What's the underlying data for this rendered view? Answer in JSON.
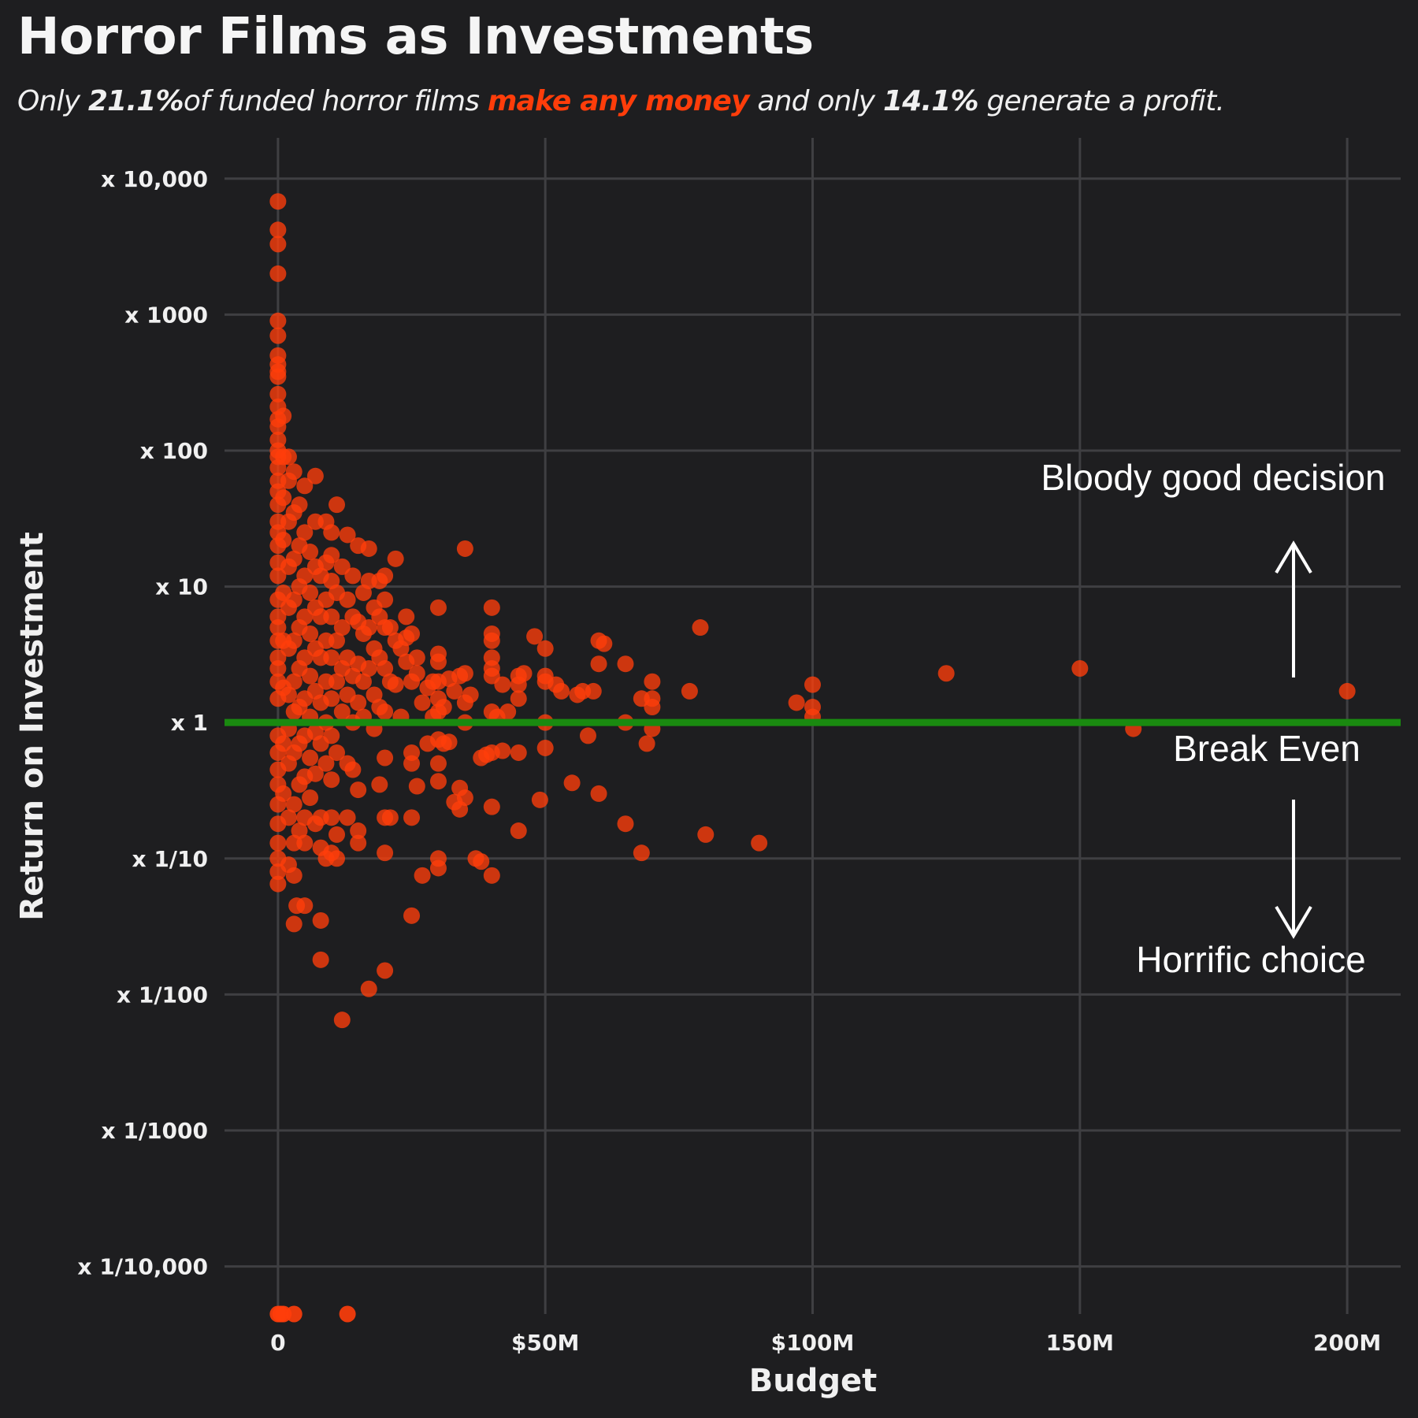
{
  "header": {
    "title": "Horror Films as Investments",
    "subtitle_parts": [
      "Only ",
      "21.1%",
      "of funded horror films ",
      "make any money",
      " and only ",
      "14.1%",
      " generate a profit."
    ]
  },
  "colors": {
    "background": "#1e1e20",
    "points": "#ff3d0a",
    "break_even_line": "#1a8a10",
    "grid": "#3f3f42",
    "text": "#f0f0f0"
  },
  "annotations": {
    "upper": "Bloody good decision",
    "middle": "Break Even",
    "lower": "Horrific choice"
  },
  "chart_data": {
    "type": "scatter",
    "xlabel": "Budget",
    "ylabel": "Return on Investment",
    "xlim": [
      -10000000,
      210000000
    ],
    "ylim_log10": [
      -4.35,
      4.3
    ],
    "y_scale": "log10",
    "grid": true,
    "x_ticks": [
      {
        "value": 0,
        "label": "0"
      },
      {
        "value": 50000000,
        "label": "$50M"
      },
      {
        "value": 100000000,
        "label": "$100M"
      },
      {
        "value": 150000000,
        "label": "150M"
      },
      {
        "value": 200000000,
        "label": "200M"
      }
    ],
    "y_ticks": [
      {
        "value": 10000,
        "label": "x 10,000"
      },
      {
        "value": 1000,
        "label": "x 1000"
      },
      {
        "value": 100,
        "label": "x 100"
      },
      {
        "value": 10,
        "label": "x 10"
      },
      {
        "value": 1,
        "label": "x 1"
      },
      {
        "value": 0.1,
        "label": "x 1/10"
      },
      {
        "value": 0.01,
        "label": "x 1/100"
      },
      {
        "value": 0.001,
        "label": "x 1/1000"
      },
      {
        "value": 0.0001,
        "label": "x 1/10,000"
      }
    ],
    "break_even": 1,
    "points": [
      [
        0,
        6800
      ],
      [
        0,
        4200
      ],
      [
        0,
        3300
      ],
      [
        0,
        2000
      ],
      [
        0,
        900
      ],
      [
        0,
        700
      ],
      [
        0,
        500
      ],
      [
        0,
        430
      ],
      [
        0,
        380
      ],
      [
        0,
        350
      ],
      [
        0,
        260
      ],
      [
        0,
        210
      ],
      [
        0,
        170
      ],
      [
        0,
        150
      ],
      [
        0,
        120
      ],
      [
        0,
        100
      ],
      [
        0,
        90
      ],
      [
        0,
        75
      ],
      [
        0,
        60
      ],
      [
        0,
        50
      ],
      [
        0,
        40
      ],
      [
        0,
        30
      ],
      [
        0,
        25
      ],
      [
        0,
        20
      ],
      [
        0,
        15
      ],
      [
        0,
        12
      ],
      [
        0,
        8
      ],
      [
        0,
        6
      ],
      [
        0,
        5
      ],
      [
        0,
        4
      ],
      [
        0,
        3
      ],
      [
        0,
        2.5
      ],
      [
        0,
        2
      ],
      [
        0,
        1.5
      ],
      [
        0,
        0.8
      ],
      [
        0,
        0.6
      ],
      [
        0,
        0.45
      ],
      [
        0,
        0.35
      ],
      [
        0,
        0.25
      ],
      [
        0,
        0.18
      ],
      [
        0,
        0.13
      ],
      [
        0,
        0.1
      ],
      [
        0,
        0.08
      ],
      [
        0,
        0.065
      ],
      [
        1000000,
        180
      ],
      [
        1000000,
        90
      ],
      [
        1000000,
        45
      ],
      [
        1000000,
        22
      ],
      [
        1000000,
        9
      ],
      [
        1000000,
        4
      ],
      [
        1000000,
        1.8
      ],
      [
        1000000,
        0.7
      ],
      [
        1000000,
        0.3
      ],
      [
        2000000,
        90
      ],
      [
        2000000,
        60
      ],
      [
        2000000,
        30
      ],
      [
        2000000,
        14
      ],
      [
        2000000,
        7
      ],
      [
        2000000,
        3.5
      ],
      [
        2000000,
        1.6
      ],
      [
        2000000,
        0.9
      ],
      [
        2000000,
        0.5
      ],
      [
        2000000,
        0.2
      ],
      [
        2000000,
        0.09
      ],
      [
        3000000,
        70
      ],
      [
        3000000,
        35
      ],
      [
        3000000,
        16
      ],
      [
        3000000,
        8
      ],
      [
        3000000,
        4
      ],
      [
        3000000,
        2
      ],
      [
        3000000,
        1.2
      ],
      [
        3000000,
        0.6
      ],
      [
        3000000,
        0.25
      ],
      [
        3000000,
        0.13
      ],
      [
        3000000,
        0.075
      ],
      [
        4000000,
        40
      ],
      [
        4000000,
        20
      ],
      [
        4000000,
        10
      ],
      [
        4000000,
        5
      ],
      [
        4000000,
        2.5
      ],
      [
        4000000,
        1.3
      ],
      [
        4000000,
        0.7
      ],
      [
        4000000,
        0.35
      ],
      [
        4000000,
        0.16
      ],
      [
        5000000,
        55
      ],
      [
        5000000,
        25
      ],
      [
        5000000,
        12
      ],
      [
        5000000,
        6
      ],
      [
        5000000,
        3
      ],
      [
        5000000,
        1.5
      ],
      [
        5000000,
        0.8
      ],
      [
        5000000,
        0.4
      ],
      [
        5000000,
        0.2
      ],
      [
        5000000,
        0.13
      ],
      [
        3500000,
        0.045
      ],
      [
        5000000,
        0.045
      ],
      [
        3000000,
        0.033
      ],
      [
        6000000,
        18
      ],
      [
        6000000,
        9
      ],
      [
        6000000,
        4.5
      ],
      [
        6000000,
        2.2
      ],
      [
        6000000,
        1.1
      ],
      [
        6000000,
        0.55
      ],
      [
        6000000,
        0.28
      ],
      [
        7000000,
        30
      ],
      [
        7000000,
        14
      ],
      [
        7000000,
        7
      ],
      [
        7000000,
        3.5
      ],
      [
        7000000,
        1.7
      ],
      [
        7000000,
        0.85
      ],
      [
        7000000,
        0.42
      ],
      [
        7000000,
        0.18
      ],
      [
        7000000,
        65
      ],
      [
        8000000,
        12
      ],
      [
        8000000,
        6
      ],
      [
        8000000,
        3
      ],
      [
        8000000,
        1.4
      ],
      [
        8000000,
        0.7
      ],
      [
        8000000,
        0.2
      ],
      [
        8000000,
        0.12
      ],
      [
        8000000,
        0.035
      ],
      [
        8000000,
        0.018
      ],
      [
        9000000,
        30
      ],
      [
        9000000,
        15
      ],
      [
        9000000,
        8
      ],
      [
        9000000,
        4
      ],
      [
        9000000,
        2
      ],
      [
        9000000,
        1
      ],
      [
        9000000,
        0.5
      ],
      [
        9000000,
        0.1
      ],
      [
        10000000,
        25
      ],
      [
        10000000,
        17
      ],
      [
        10000000,
        11
      ],
      [
        10000000,
        6
      ],
      [
        10000000,
        3
      ],
      [
        10000000,
        1.5
      ],
      [
        10000000,
        0.8
      ],
      [
        10000000,
        0.38
      ],
      [
        10000000,
        0.2
      ],
      [
        10000000,
        0.11
      ],
      [
        11000000,
        40
      ],
      [
        11000000,
        9
      ],
      [
        11000000,
        4
      ],
      [
        11000000,
        2
      ],
      [
        11000000,
        0.6
      ],
      [
        11000000,
        0.15
      ],
      [
        11000000,
        0.1
      ],
      [
        12000000,
        14
      ],
      [
        12000000,
        5
      ],
      [
        12000000,
        2.5
      ],
      [
        12000000,
        1.2
      ],
      [
        12000000,
        0.0065
      ],
      [
        13000000,
        24
      ],
      [
        13000000,
        8
      ],
      [
        13000000,
        3
      ],
      [
        13000000,
        1.6
      ],
      [
        13000000,
        0.5
      ],
      [
        13000000,
        0.2
      ],
      [
        14000000,
        12
      ],
      [
        14000000,
        6
      ],
      [
        14000000,
        2.2
      ],
      [
        14000000,
        1
      ],
      [
        14000000,
        0.45
      ],
      [
        15000000,
        20
      ],
      [
        15000000,
        5.5
      ],
      [
        15000000,
        2.7
      ],
      [
        15000000,
        1.4
      ],
      [
        15000000,
        0.32
      ],
      [
        15000000,
        0.16
      ],
      [
        15000000,
        0.13
      ],
      [
        16000000,
        9
      ],
      [
        16000000,
        4.5
      ],
      [
        16000000,
        2
      ],
      [
        16000000,
        1.1
      ],
      [
        17000000,
        19
      ],
      [
        17000000,
        11
      ],
      [
        17000000,
        5
      ],
      [
        17000000,
        2.5
      ],
      [
        17000000,
        0.011
      ],
      [
        18000000,
        7
      ],
      [
        18000000,
        3.5
      ],
      [
        18000000,
        1.6
      ],
      [
        18000000,
        0.9
      ],
      [
        19000000,
        11
      ],
      [
        19000000,
        6
      ],
      [
        19000000,
        3
      ],
      [
        19000000,
        1.3
      ],
      [
        19000000,
        0.35
      ],
      [
        20000000,
        12
      ],
      [
        20000000,
        8
      ],
      [
        20000000,
        5
      ],
      [
        20000000,
        2.5
      ],
      [
        20000000,
        1.2
      ],
      [
        20000000,
        0.55
      ],
      [
        20000000,
        0.2
      ],
      [
        20000000,
        0.11
      ],
      [
        20000000,
        0.015
      ],
      [
        21000000,
        5
      ],
      [
        21000000,
        2
      ],
      [
        21000000,
        0.2
      ],
      [
        22000000,
        16
      ],
      [
        22000000,
        4
      ],
      [
        22000000,
        1.9
      ],
      [
        23000000,
        3.5
      ],
      [
        23000000,
        1.1
      ],
      [
        24000000,
        6
      ],
      [
        24000000,
        4.2
      ],
      [
        24000000,
        2.8
      ],
      [
        25000000,
        4.5
      ],
      [
        25000000,
        2
      ],
      [
        25000000,
        0.6
      ],
      [
        25000000,
        0.5
      ],
      [
        25000000,
        0.2
      ],
      [
        25000000,
        0.038
      ],
      [
        26000000,
        3
      ],
      [
        26000000,
        2.3
      ],
      [
        26000000,
        0.34
      ],
      [
        27000000,
        0.075
      ],
      [
        27000000,
        1.4
      ],
      [
        28000000,
        1.8
      ],
      [
        28000000,
        0.7
      ],
      [
        29000000,
        2
      ],
      [
        29000000,
        1.1
      ],
      [
        30000000,
        7
      ],
      [
        30000000,
        3.2
      ],
      [
        30000000,
        2.8
      ],
      [
        30000000,
        2
      ],
      [
        30000000,
        1.5
      ],
      [
        30000000,
        1.2
      ],
      [
        30000000,
        0.75
      ],
      [
        30000000,
        0.5
      ],
      [
        30000000,
        0.37
      ],
      [
        30000000,
        0.1
      ],
      [
        30000000,
        0.085
      ],
      [
        31000000,
        1.3
      ],
      [
        31000000,
        0.7
      ],
      [
        32000000,
        2.1
      ],
      [
        32000000,
        0.72
      ],
      [
        33000000,
        1.7
      ],
      [
        33000000,
        0.26
      ],
      [
        34000000,
        2.2
      ],
      [
        34000000,
        0.33
      ],
      [
        34000000,
        0.23
      ],
      [
        35000000,
        19
      ],
      [
        35000000,
        2.3
      ],
      [
        35000000,
        1.4
      ],
      [
        35000000,
        1
      ],
      [
        35000000,
        0.28
      ],
      [
        36000000,
        1.6
      ],
      [
        37000000,
        0.1
      ],
      [
        38000000,
        0.55
      ],
      [
        38000000,
        0.095
      ],
      [
        39000000,
        0.58
      ],
      [
        40000000,
        7
      ],
      [
        40000000,
        4.5
      ],
      [
        40000000,
        4
      ],
      [
        40000000,
        3
      ],
      [
        40000000,
        2.5
      ],
      [
        40000000,
        2.2
      ],
      [
        40000000,
        1.2
      ],
      [
        40000000,
        0.6
      ],
      [
        40000000,
        0.24
      ],
      [
        40000000,
        0.075
      ],
      [
        41000000,
        1.1
      ],
      [
        42000000,
        1.9
      ],
      [
        42000000,
        0.62
      ],
      [
        43000000,
        1.2
      ],
      [
        45000000,
        2.2
      ],
      [
        45000000,
        1.9
      ],
      [
        45000000,
        1.5
      ],
      [
        45000000,
        0.6
      ],
      [
        45000000,
        0.16
      ],
      [
        46000000,
        2.3
      ],
      [
        48000000,
        4.3
      ],
      [
        49000000,
        0.27
      ],
      [
        50000000,
        3.5
      ],
      [
        50000000,
        2.2
      ],
      [
        50000000,
        2
      ],
      [
        50000000,
        1
      ],
      [
        50000000,
        0.65
      ],
      [
        52000000,
        1.9
      ],
      [
        53000000,
        1.7
      ],
      [
        55000000,
        0.36
      ],
      [
        56000000,
        1.6
      ],
      [
        57000000,
        1.7
      ],
      [
        58000000,
        0.8
      ],
      [
        59000000,
        1.7
      ],
      [
        60000000,
        4
      ],
      [
        60000000,
        2.7
      ],
      [
        60000000,
        0.3
      ],
      [
        61000000,
        3.8
      ],
      [
        65000000,
        2.7
      ],
      [
        65000000,
        1
      ],
      [
        65000000,
        0.18
      ],
      [
        68000000,
        1.5
      ],
      [
        68000000,
        0.11
      ],
      [
        69000000,
        0.7
      ],
      [
        70000000,
        2
      ],
      [
        70000000,
        1.5
      ],
      [
        70000000,
        1.3
      ],
      [
        70000000,
        0.9
      ],
      [
        77000000,
        1.7
      ],
      [
        79000000,
        5
      ],
      [
        80000000,
        0.15
      ],
      [
        90000000,
        0.13
      ],
      [
        97000000,
        1.4
      ],
      [
        100000000,
        1.9
      ],
      [
        100000000,
        1.3
      ],
      [
        100000000,
        1.1
      ],
      [
        125000000,
        2.3
      ],
      [
        150000000,
        2.5
      ],
      [
        160000000,
        0.9
      ],
      [
        200000000,
        1.7
      ]
    ],
    "zero_return_points_budget": [
      0,
      500000,
      1000000,
      3000000,
      13000000
    ]
  }
}
